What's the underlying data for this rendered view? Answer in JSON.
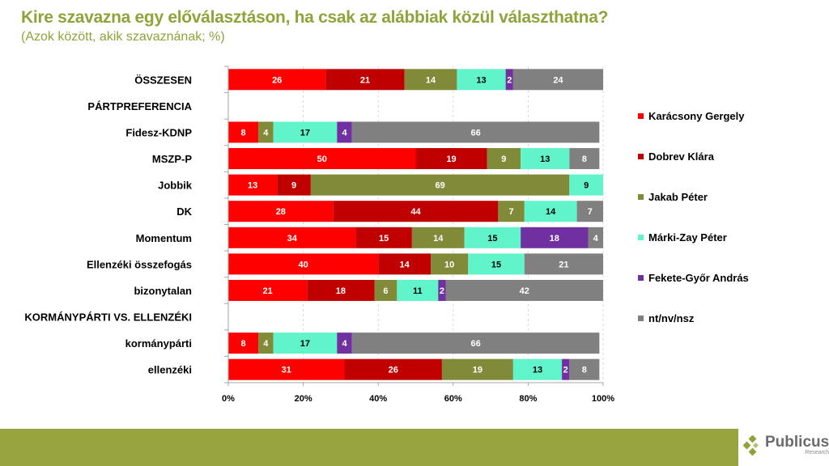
{
  "header": {
    "title": "Kire szavazna egy előválasztáson, ha csak az alábbiak közül választhatna?",
    "subtitle": "(Azok között, akik szavaznának; %)"
  },
  "footer": {
    "logo_name": "Publicus",
    "logo_sub": "Research",
    "bar_color": "#98A43F"
  },
  "chart_data": {
    "type": "bar",
    "orientation": "horizontal",
    "stacked": "100%",
    "title": "Kire szavazna egy előválasztáson, ha csak az alábbiak közül választhatna?",
    "subtitle": "(Azok között, akik szavaznának; %)",
    "xlabel": "",
    "ylabel": "",
    "xlim": [
      0,
      100
    ],
    "x_ticks": [
      "0%",
      "20%",
      "40%",
      "60%",
      "80%",
      "100%"
    ],
    "grid": "vertical dashed",
    "legend_position": "right",
    "categories": [
      "ÖSSZESEN",
      "PÁRTPREFERENCIA",
      "Fidesz-KDNP",
      "MSZP-P",
      "Jobbik",
      "DK",
      "Momentum",
      "Ellenzéki összefogás",
      "bizonytalan",
      "KORMÁNYPÁRTI VS. ELLENZÉKI",
      "kormánypárti",
      "ellenzéki"
    ],
    "series": [
      {
        "name": "Karácsony Gergely",
        "color": "#FF0000",
        "label_color": "#FFFFFF",
        "values": [
          26,
          null,
          8,
          50,
          13,
          28,
          34,
          40,
          21,
          null,
          8,
          31
        ]
      },
      {
        "name": "Dobrev Klára",
        "color": "#C00000",
        "label_color": "#FFFFFF",
        "values": [
          21,
          null,
          0,
          19,
          9,
          44,
          15,
          14,
          18,
          null,
          0,
          26
        ]
      },
      {
        "name": "Jakab Péter",
        "color": "#818A38",
        "label_color": "#FFFFFF",
        "values": [
          14,
          null,
          4,
          9,
          69,
          7,
          14,
          10,
          6,
          null,
          4,
          19
        ]
      },
      {
        "name": "Márki-Zay Péter",
        "color": "#61F4CB",
        "label_color": "#000000",
        "values": [
          13,
          null,
          17,
          13,
          9,
          14,
          15,
          15,
          11,
          null,
          17,
          13
        ]
      },
      {
        "name": "Fekete-Győr András",
        "color": "#7030A0",
        "label_color": "#FFFFFF",
        "values": [
          2,
          null,
          4,
          0,
          0,
          0,
          18,
          0,
          2,
          null,
          4,
          2
        ]
      },
      {
        "name": "nt/nv/nsz",
        "color": "#808080",
        "label_color": "#FFFFFF",
        "values": [
          24,
          null,
          66,
          8,
          0,
          7,
          4,
          21,
          42,
          null,
          66,
          8
        ]
      }
    ]
  }
}
